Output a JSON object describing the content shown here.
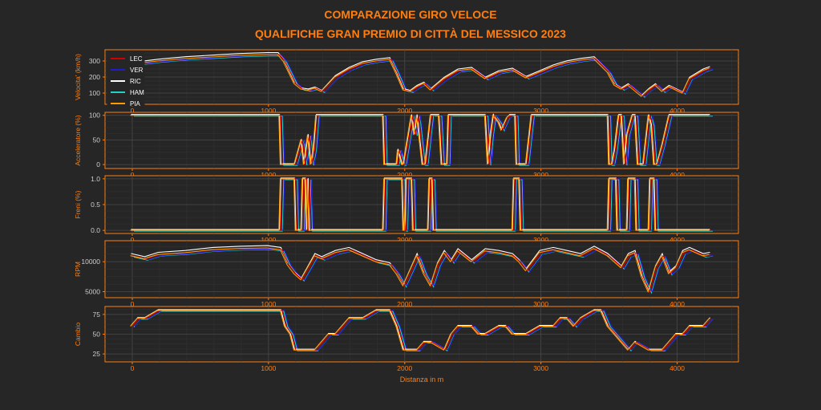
{
  "title_line1": "COMPARAZIONE GIRO VELOCE",
  "title_line2": "QUALIFICHE GRAN PREMIO DI CITTÀ DEL MESSICO 2023",
  "accent_color": "#ff7f0e",
  "background_color": "#262626",
  "chart_data": [
    {
      "type": "line",
      "ylabel": "Velocita' (km/h)",
      "xlabel": "",
      "xlim": [
        -200,
        4450
      ],
      "ylim": [
        30,
        370
      ],
      "yticks": [
        100,
        200,
        300
      ],
      "xticks": [
        0,
        1000,
        2000,
        3000,
        4000
      ],
      "legend": "top-left",
      "series": [
        {
          "name": "LEC",
          "color": "#d40000"
        },
        {
          "name": "VER",
          "color": "#1e1ecc"
        },
        {
          "name": "RIC",
          "color": "#ffffff"
        },
        {
          "name": "HAM",
          "color": "#22d3c5"
        },
        {
          "name": "PIA",
          "color": "#ff9a00"
        }
      ],
      "x": [
        0,
        200,
        400,
        600,
        800,
        1000,
        1080,
        1120,
        1160,
        1200,
        1250,
        1300,
        1350,
        1400,
        1500,
        1600,
        1700,
        1800,
        1900,
        1950,
        2000,
        2050,
        2100,
        2150,
        2200,
        2300,
        2400,
        2500,
        2600,
        2700,
        2800,
        2850,
        2900,
        3000,
        3100,
        3200,
        3300,
        3400,
        3500,
        3550,
        3600,
        3650,
        3700,
        3750,
        3800,
        3850,
        3900,
        3950,
        4000,
        4050,
        4100,
        4200,
        4250
      ],
      "values": [
        280,
        300,
        315,
        325,
        335,
        340,
        340,
        300,
        230,
        160,
        125,
        118,
        130,
        110,
        200,
        250,
        285,
        300,
        310,
        220,
        120,
        110,
        140,
        160,
        120,
        190,
        240,
        250,
        190,
        230,
        245,
        220,
        195,
        230,
        265,
        290,
        305,
        315,
        230,
        150,
        125,
        150,
        115,
        80,
        120,
        150,
        110,
        140,
        120,
        100,
        190,
        240,
        255
      ]
    },
    {
      "type": "line",
      "ylabel": "Acceleratore (%)",
      "xlabel": "",
      "xlim": [
        -200,
        4450
      ],
      "ylim": [
        -8,
        106
      ],
      "yticks": [
        0,
        50,
        100
      ],
      "xticks": [
        0,
        1000,
        2000,
        3000,
        4000
      ],
      "x": [
        0,
        1090,
        1100,
        1160,
        1170,
        1200,
        1250,
        1270,
        1300,
        1320,
        1340,
        1360,
        1380,
        1400,
        1850,
        1860,
        1900,
        1950,
        1960,
        1990,
        2000,
        2060,
        2080,
        2100,
        2140,
        2160,
        2200,
        2260,
        2280,
        2320,
        2330,
        2350,
        2600,
        2620,
        2640,
        2660,
        2700,
        2720,
        2760,
        2780,
        2820,
        2830,
        2900,
        2940,
        2960,
        3000,
        3500,
        3510,
        3530,
        3550,
        3580,
        3600,
        3620,
        3640,
        3680,
        3700,
        3720,
        3760,
        3800,
        3820,
        3840,
        3860,
        3900,
        3950,
        4000,
        4050,
        4250
      ],
      "values": [
        100,
        100,
        0,
        0,
        0,
        0,
        50,
        0,
        60,
        0,
        30,
        100,
        100,
        100,
        100,
        0,
        0,
        0,
        30,
        0,
        0,
        100,
        60,
        100,
        0,
        0,
        100,
        100,
        0,
        0,
        100,
        100,
        100,
        0,
        60,
        100,
        85,
        70,
        95,
        100,
        100,
        0,
        0,
        100,
        100,
        100,
        100,
        0,
        0,
        30,
        100,
        100,
        0,
        60,
        100,
        100,
        0,
        0,
        100,
        80,
        0,
        0,
        40,
        100,
        100,
        100,
        100
      ]
    },
    {
      "type": "line",
      "ylabel": "Freni (%)",
      "xlabel": "",
      "xlim": [
        -200,
        4450
      ],
      "ylim": [
        -0.06,
        1.06
      ],
      "yticks": [
        0.0,
        0.5,
        1.0
      ],
      "xticks": [
        0,
        1000,
        2000,
        3000,
        4000
      ],
      "x": [
        0,
        1090,
        1100,
        1200,
        1210,
        1250,
        1260,
        1280,
        1290,
        1300,
        1310,
        1850,
        1860,
        1990,
        2000,
        2010,
        2020,
        2060,
        2070,
        2180,
        2190,
        2210,
        2220,
        2800,
        2810,
        2850,
        2860,
        3500,
        3510,
        3560,
        3570,
        3640,
        3650,
        3700,
        3710,
        3800,
        3810,
        3840,
        3850,
        4250
      ],
      "values": [
        0,
        0,
        1,
        1,
        0,
        0,
        1,
        1,
        0,
        1,
        0,
        0,
        1,
        1,
        0,
        0,
        1,
        1,
        0,
        0,
        1,
        1,
        0,
        0,
        1,
        1,
        0,
        0,
        1,
        1,
        0,
        0,
        1,
        1,
        0,
        0,
        1,
        1,
        0,
        0
      ]
    },
    {
      "type": "line",
      "ylabel": "RPM",
      "xlabel": "",
      "xlim": [
        -200,
        4450
      ],
      "ylim": [
        4000,
        13500
      ],
      "yticks": [
        5000,
        10000
      ],
      "xticks": [
        0,
        1000,
        2000,
        3000,
        4000
      ],
      "x": [
        0,
        100,
        200,
        400,
        600,
        800,
        1000,
        1100,
        1150,
        1200,
        1250,
        1300,
        1350,
        1400,
        1450,
        1500,
        1600,
        1700,
        1800,
        1900,
        1950,
        2000,
        2050,
        2100,
        2150,
        2200,
        2250,
        2300,
        2350,
        2400,
        2500,
        2600,
        2700,
        2800,
        2850,
        2900,
        3000,
        3100,
        3200,
        3300,
        3400,
        3500,
        3550,
        3600,
        3650,
        3700,
        3750,
        3800,
        3850,
        3900,
        3950,
        4000,
        4050,
        4100,
        4200,
        4250
      ],
      "values": [
        11000,
        10500,
        11200,
        11500,
        12000,
        12200,
        12300,
        12000,
        9500,
        8000,
        7000,
        9000,
        11000,
        10500,
        11000,
        11500,
        12000,
        11000,
        10000,
        9500,
        8000,
        6000,
        8500,
        11000,
        8000,
        6000,
        9500,
        11500,
        10000,
        11800,
        10000,
        11800,
        11500,
        11000,
        10000,
        8500,
        11500,
        12000,
        11500,
        11000,
        12200,
        11000,
        10000,
        9000,
        11000,
        11500,
        7500,
        5000,
        9000,
        11000,
        8000,
        9000,
        11500,
        12000,
        11000,
        11200
      ]
    },
    {
      "type": "line",
      "ylabel": "Cambio",
      "xlabel": "Distanza in m",
      "xlim": [
        -200,
        4450
      ],
      "ylim": [
        15,
        85
      ],
      "yticks": [
        25,
        50,
        75
      ],
      "xticks": [
        0,
        1000,
        2000,
        3000,
        4000
      ],
      "x": [
        0,
        50,
        100,
        200,
        1100,
        1130,
        1170,
        1200,
        1350,
        1400,
        1450,
        1500,
        1550,
        1600,
        1700,
        1800,
        1900,
        1950,
        2000,
        2100,
        2150,
        2200,
        2300,
        2350,
        2400,
        2500,
        2550,
        2600,
        2700,
        2750,
        2800,
        2850,
        2900,
        3000,
        3100,
        3150,
        3200,
        3250,
        3300,
        3400,
        3450,
        3500,
        3600,
        3650,
        3700,
        3800,
        3850,
        3900,
        3950,
        4000,
        4050,
        4100,
        4150,
        4200,
        4250
      ],
      "values": [
        60,
        70,
        70,
        80,
        80,
        60,
        50,
        30,
        30,
        40,
        50,
        50,
        60,
        70,
        70,
        80,
        80,
        60,
        30,
        30,
        40,
        40,
        30,
        50,
        60,
        60,
        50,
        50,
        60,
        60,
        50,
        50,
        50,
        60,
        60,
        70,
        70,
        60,
        70,
        80,
        80,
        60,
        40,
        30,
        40,
        30,
        30,
        30,
        40,
        50,
        50,
        60,
        60,
        60,
        70
      ]
    }
  ]
}
